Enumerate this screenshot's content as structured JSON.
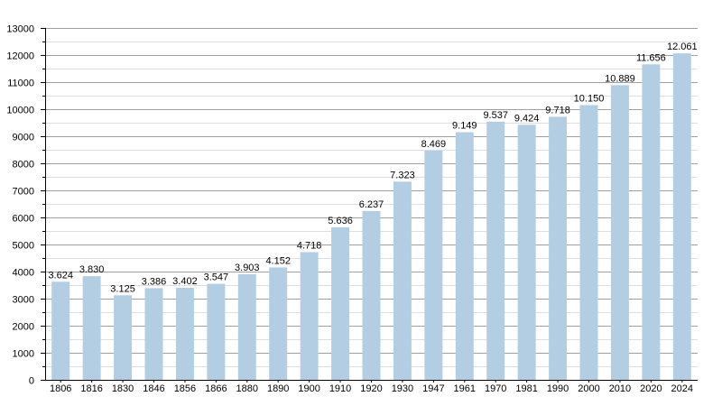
{
  "chart_data": {
    "type": "bar",
    "title": "",
    "xlabel": "",
    "ylabel": "",
    "categories": [
      "1806",
      "1816",
      "1830",
      "1846",
      "1856",
      "1866",
      "1880",
      "1890",
      "1900",
      "1910",
      "1920",
      "1930",
      "1947",
      "1961",
      "1970",
      "1981",
      "1990",
      "2000",
      "2010",
      "2020",
      "2024"
    ],
    "values": [
      3624,
      3830,
      3125,
      3386,
      3402,
      3547,
      3903,
      4152,
      4718,
      5636,
      6237,
      7323,
      8469,
      9149,
      9537,
      9424,
      9718,
      10150,
      10889,
      11656,
      12061
    ],
    "data_labels": [
      "3.624",
      "3.830",
      "3.125",
      "3.386",
      "3.402",
      "3.547",
      "3.903",
      "4.152",
      "4.718",
      "5.636",
      "6.237",
      "7.323",
      "8.469",
      "9.149",
      "9.537",
      "9.424",
      "9.718",
      "10.150",
      "10.889",
      "11.656",
      "12.061"
    ],
    "ylim": [
      0,
      13000
    ],
    "y_ticks": [
      "0",
      "1000",
      "2000",
      "3000",
      "4000",
      "5000",
      "6000",
      "7000",
      "8000",
      "9000",
      "10000",
      "11000",
      "12000",
      "13000"
    ],
    "grid": true,
    "bar_color": "#b3cde3",
    "major_grid_color": "#a0a0a0",
    "minor_grid_color": "#dedede"
  }
}
